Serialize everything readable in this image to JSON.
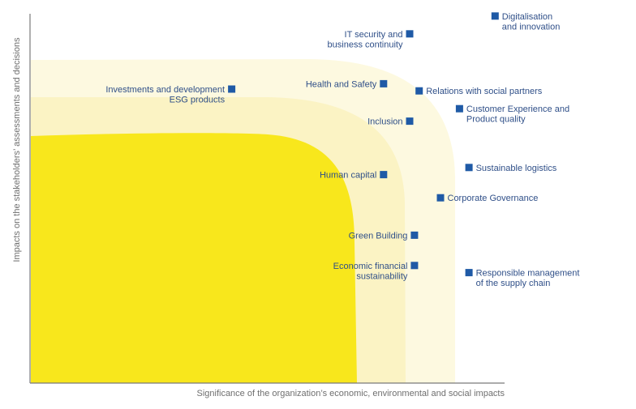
{
  "chart_data": {
    "type": "scatter",
    "title": "",
    "xlabel": "Significance of the organization’s economic, environmental and social impacts",
    "ylabel": "Impacts on the stakeholders’ assessments and decisions",
    "xlim": [
      0,
      100
    ],
    "ylim": [
      0,
      100
    ],
    "grid": false,
    "legend": "none",
    "colors": {
      "marker": "#1f5aa6",
      "label": "#2f4f88",
      "zone_outer": "#fdf9e0",
      "zone_middle": "#fbf3c4",
      "zone_inner": "#f8e71c",
      "axis": "#7a7a7a"
    },
    "points": [
      {
        "label": [
          "Digitalisation",
          "and innovation"
        ],
        "x": 98,
        "y": 103,
        "label_side": "right"
      },
      {
        "label": [
          "IT security and",
          "business continuity"
        ],
        "x": 80,
        "y": 98,
        "label_side": "left"
      },
      {
        "label": [
          "Health and Safety"
        ],
        "x": 74.5,
        "y": 84,
        "label_side": "left"
      },
      {
        "label": [
          "Relations with social partners"
        ],
        "x": 82,
        "y": 82,
        "label_side": "right"
      },
      {
        "label": [
          "Investments and development",
          "ESG products"
        ],
        "x": 42.5,
        "y": 82.5,
        "label_side": "left"
      },
      {
        "label": [
          "Customer Experience and",
          "Product quality"
        ],
        "x": 90.5,
        "y": 77,
        "label_side": "right"
      },
      {
        "label": [
          "Inclusion"
        ],
        "x": 80,
        "y": 73.5,
        "label_side": "left"
      },
      {
        "label": [
          "Sustainable logistics"
        ],
        "x": 92.5,
        "y": 60.5,
        "label_side": "right"
      },
      {
        "label": [
          "Human capital"
        ],
        "x": 74.5,
        "y": 58.5,
        "label_side": "left"
      },
      {
        "label": [
          "Corporate Governance"
        ],
        "x": 86.5,
        "y": 52,
        "label_side": "right"
      },
      {
        "label": [
          "Green Building"
        ],
        "x": 81,
        "y": 41.5,
        "label_side": "left"
      },
      {
        "label": [
          "Economic financial",
          "sustainability"
        ],
        "x": 81,
        "y": 33,
        "label_side": "left"
      },
      {
        "label": [
          "Responsible management",
          "of the supply chain"
        ],
        "x": 92.5,
        "y": 31,
        "label_side": "right"
      }
    ]
  }
}
